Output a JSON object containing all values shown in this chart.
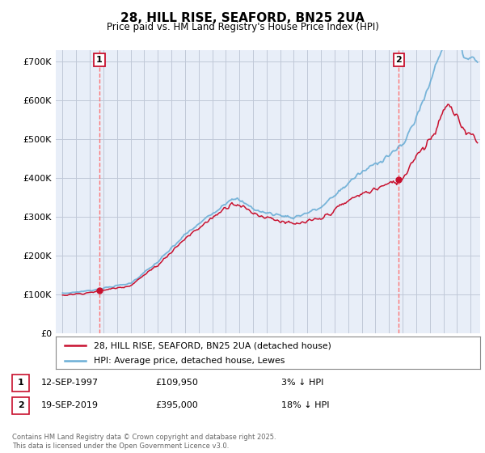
{
  "title": "28, HILL RISE, SEAFORD, BN25 2UA",
  "subtitle": "Price paid vs. HM Land Registry's House Price Index (HPI)",
  "ylabel_ticks": [
    "£0",
    "£100K",
    "£200K",
    "£300K",
    "£400K",
    "£500K",
    "£600K",
    "£700K"
  ],
  "ytick_values": [
    0,
    100000,
    200000,
    300000,
    400000,
    500000,
    600000,
    700000
  ],
  "ylim": [
    0,
    730000
  ],
  "xlim_start": 1994.5,
  "xlim_end": 2025.7,
  "sale1_date": 1997.71,
  "sale1_price": 109950,
  "sale2_date": 2019.72,
  "sale2_price": 395000,
  "hpi_color": "#6baed6",
  "price_color": "#c8102e",
  "vline_color": "#ff6666",
  "grid_color": "#c0c8d8",
  "bg_color": "#e8eef8",
  "legend_label1": "28, HILL RISE, SEAFORD, BN25 2UA (detached house)",
  "legend_label2": "HPI: Average price, detached house, Lewes",
  "info1_date": "12-SEP-1997",
  "info1_price": "£109,950",
  "info1_pct": "3% ↓ HPI",
  "info2_date": "19-SEP-2019",
  "info2_price": "£395,000",
  "info2_pct": "18% ↓ HPI",
  "copyright": "Contains HM Land Registry data © Crown copyright and database right 2025.\nThis data is licensed under the Open Government Licence v3.0.",
  "box_color": "#c8102e"
}
